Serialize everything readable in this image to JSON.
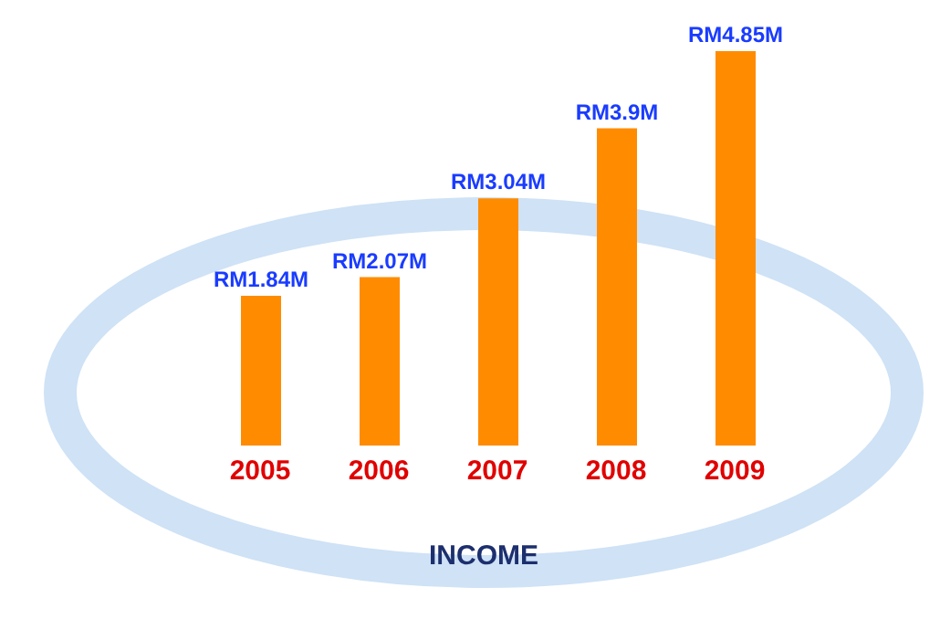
{
  "chart_data": {
    "type": "bar",
    "xlabel": "INCOME",
    "categories": [
      "2005",
      "2006",
      "2007",
      "2008",
      "2009"
    ],
    "values": [
      1840000,
      2070000,
      3040000,
      3900000,
      4850000
    ],
    "color": "#ff8c00",
    "value_labels": [
      "RM1.84M",
      "RM2.07M",
      "RM3.04M",
      "RM3.9M",
      "RM4.85M"
    ]
  }
}
